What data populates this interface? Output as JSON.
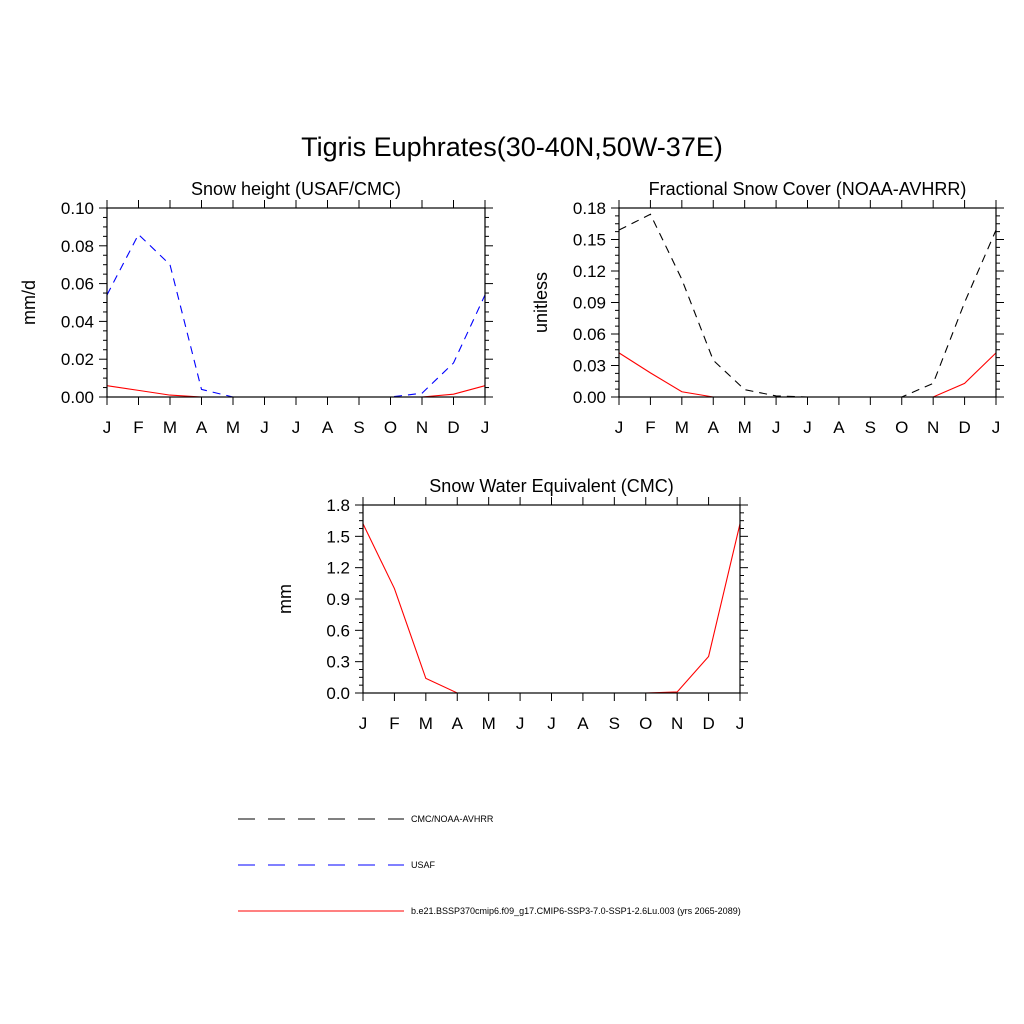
{
  "figure_title": "Tigris Euphrates(30-40N,50W-37E)",
  "chart_data": [
    {
      "type": "line",
      "title": "Snow height (USAF/CMC)",
      "ylabel": "mm/d",
      "xlabel": "",
      "categories": [
        "J",
        "F",
        "M",
        "A",
        "M",
        "J",
        "J",
        "A",
        "S",
        "O",
        "N",
        "D",
        "J"
      ],
      "ylim": [
        0,
        0.1
      ],
      "yticks": [
        0.0,
        0.02,
        0.04,
        0.06,
        0.08,
        0.1
      ],
      "ytick_labels": [
        "0.00",
        "0.02",
        "0.04",
        "0.06",
        "0.08",
        "0.10"
      ],
      "series": [
        {
          "name": "CMC/NOAA-AVHRR",
          "color": "#000000",
          "dash": "dashed",
          "values": [
            0,
            0,
            0,
            0,
            0,
            0,
            0,
            0,
            0,
            0,
            0,
            0,
            0
          ]
        },
        {
          "name": "USAF",
          "color": "#0000ff",
          "dash": "dashed",
          "values": [
            0.054,
            0.086,
            0.07,
            0.004,
            0.0,
            0.0,
            0.0,
            0.0,
            0.0,
            0.0,
            0.002,
            0.018,
            0.054
          ]
        },
        {
          "name": "b.e21.BSSP370cmip6.f09_g17.CMIP6-SSP3-7.0-SSP1-2.6Lu.003 (yrs 2065-2089)",
          "color": "#ff0000",
          "dash": "solid",
          "values": [
            0.006,
            0.0035,
            0.001,
            0.0,
            0.0,
            0.0,
            0.0,
            0.0,
            0.0,
            0.0,
            0.0,
            0.0015,
            0.006
          ]
        }
      ]
    },
    {
      "type": "line",
      "title": "Fractional Snow Cover (NOAA-AVHRR)",
      "ylabel": "unitless",
      "xlabel": "",
      "categories": [
        "J",
        "F",
        "M",
        "A",
        "M",
        "J",
        "J",
        "A",
        "S",
        "O",
        "N",
        "D",
        "J"
      ],
      "ylim": [
        0,
        0.18
      ],
      "yticks": [
        0.0,
        0.03,
        0.06,
        0.09,
        0.12,
        0.15,
        0.18
      ],
      "ytick_labels": [
        "0.00",
        "0.03",
        "0.06",
        "0.09",
        "0.12",
        "0.15",
        "0.18"
      ],
      "series": [
        {
          "name": "CMC/NOAA-AVHRR",
          "color": "#000000",
          "dash": "dashed",
          "values": [
            0.159,
            0.174,
            0.112,
            0.035,
            0.007,
            0.001,
            0.0,
            0.0,
            0.0,
            0.0,
            0.013,
            0.09,
            0.159
          ]
        },
        {
          "name": "b.e21.BSSP370cmip6.f09_g17.CMIP6-SSP3-7.0-SSP1-2.6Lu.003 (yrs 2065-2089)",
          "color": "#ff0000",
          "dash": "solid",
          "values": [
            0.042,
            0.023,
            0.005,
            0.0,
            0.0,
            0.0,
            0.0,
            0.0,
            0.0,
            0.0,
            0.0,
            0.013,
            0.042
          ]
        }
      ]
    },
    {
      "type": "line",
      "title": "Snow Water Equivalent (CMC)",
      "ylabel": "mm",
      "xlabel": "",
      "categories": [
        "J",
        "F",
        "M",
        "A",
        "M",
        "J",
        "J",
        "A",
        "S",
        "O",
        "N",
        "D",
        "J"
      ],
      "ylim": [
        0,
        1.8
      ],
      "yticks": [
        0.0,
        0.3,
        0.6,
        0.9,
        1.2,
        1.5,
        1.8
      ],
      "ytick_labels": [
        "0.0",
        "0.3",
        "0.6",
        "0.9",
        "1.2",
        "1.5",
        "1.8"
      ],
      "series": [
        {
          "name": "CMC/NOAA-AVHRR",
          "color": "#000000",
          "dash": "dashed",
          "values": [
            0,
            0,
            0,
            0,
            0,
            0,
            0,
            0,
            0,
            0,
            0,
            0,
            0
          ]
        },
        {
          "name": "b.e21.BSSP370cmip6.f09_g17.CMIP6-SSP3-7.0-SSP1-2.6Lu.003 (yrs 2065-2089)",
          "color": "#ff0000",
          "dash": "solid",
          "values": [
            1.62,
            1.0,
            0.14,
            0.0,
            0.0,
            0.0,
            0.0,
            0.0,
            0.0,
            0.0,
            0.01,
            0.35,
            1.62
          ]
        }
      ]
    }
  ],
  "legend": [
    {
      "label": "CMC/NOAA-AVHRR",
      "color": "#000000",
      "dash": "dashed"
    },
    {
      "label": "USAF",
      "color": "#0000ff",
      "dash": "dashed"
    },
    {
      "label": "b.e21.BSSP370cmip6.f09_g17.CMIP6-SSP3-7.0-SSP1-2.6Lu.003 (yrs 2065-2089)",
      "color": "#ff0000",
      "dash": "solid"
    }
  ]
}
